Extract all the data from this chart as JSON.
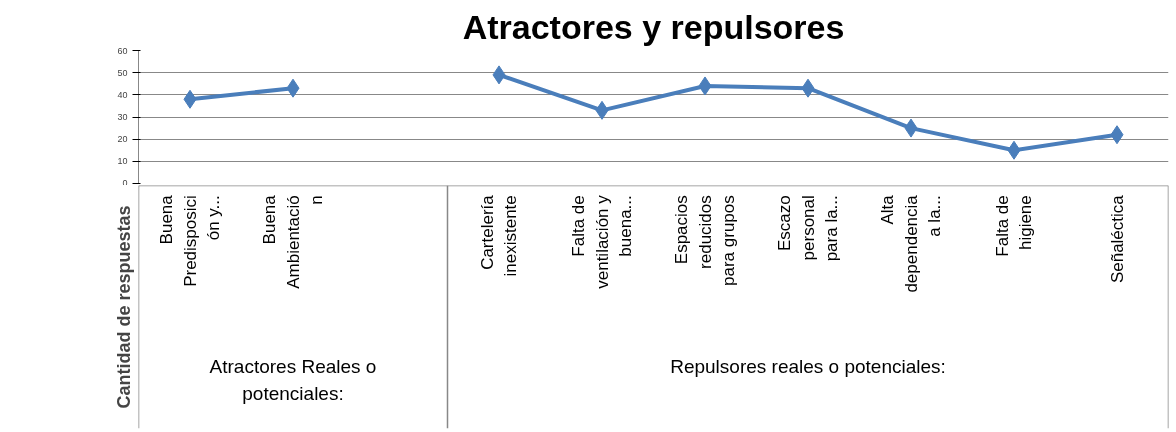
{
  "chart_data": {
    "type": "line",
    "title": "Atractores y repulsores",
    "ylabel": "Cantidad de respuestas",
    "categories": [
      "Buena\nPredisposici\nón y...",
      "Buena\nAmbientació\nn",
      null,
      "Cartelería\ninexistente",
      "Falta de\nventilación y\nbuena...",
      "Espacios\nreducidos\npara grupos",
      "Escazo\npersonal\npara la...",
      "Alta\ndependencia\na la...",
      "Falta de\nhigiene",
      "Señaléctica"
    ],
    "series": [
      {
        "color": "#4a7ebb",
        "values": [
          38,
          43,
          null,
          49,
          33,
          44,
          43,
          25,
          15,
          22
        ]
      }
    ],
    "annotations": [
      "Atractores Reales o\npotenciales:",
      "Repulsores reales o potenciales:"
    ],
    "ylim": [
      0,
      60
    ],
    "yticks": [
      0,
      10,
      20,
      30,
      40,
      50,
      60
    ],
    "grid": "y",
    "marker": "diamond",
    "line_style": "solid"
  }
}
